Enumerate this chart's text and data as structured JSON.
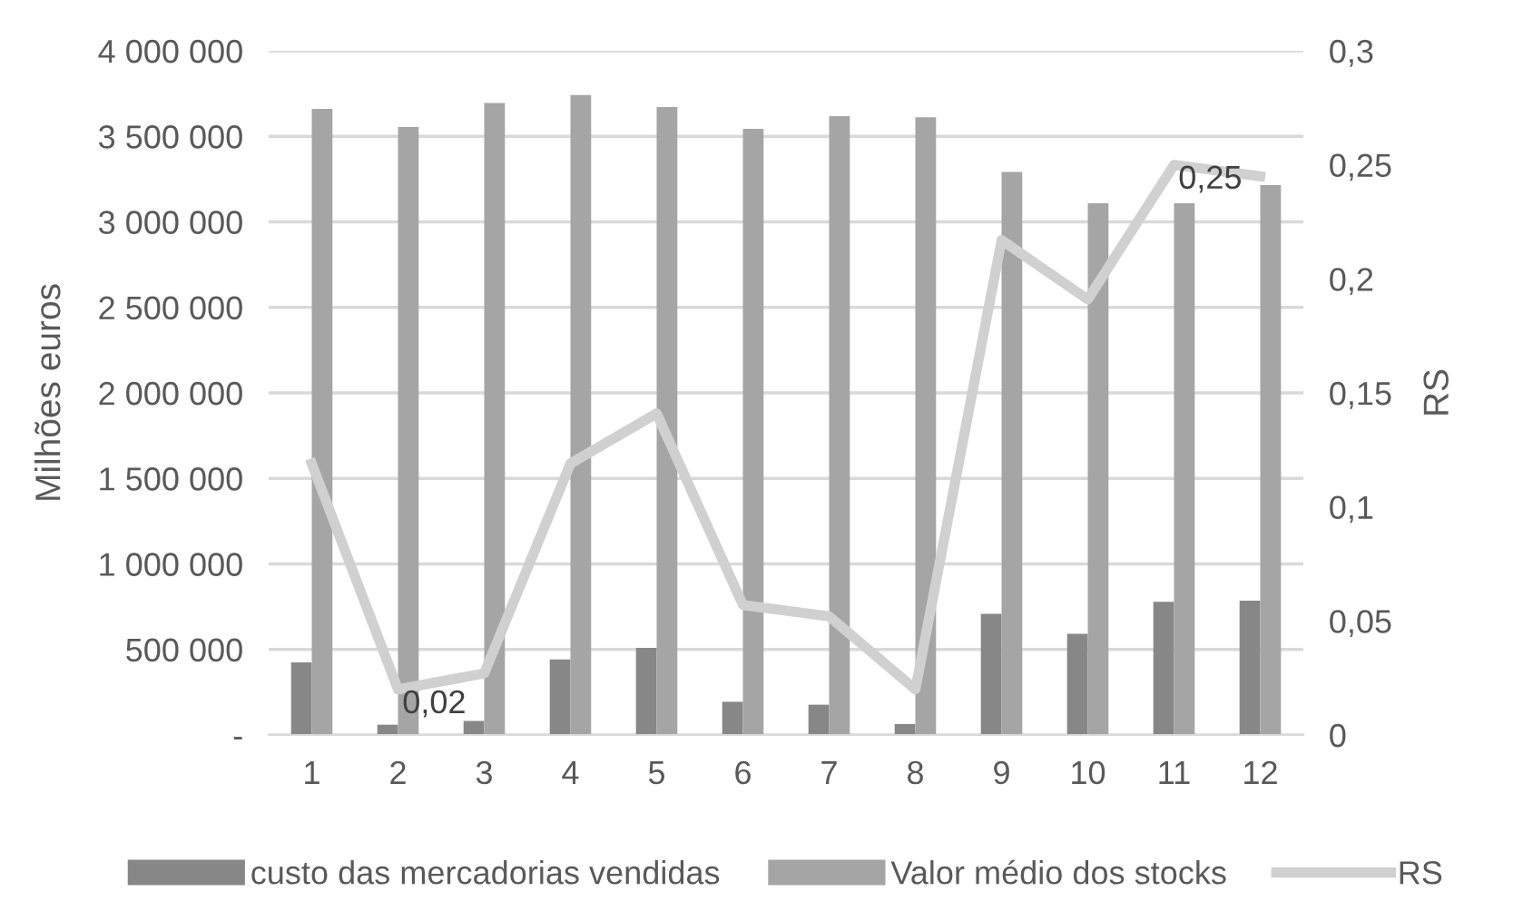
{
  "chart_data": {
    "type": "bar",
    "categories": [
      "1",
      "2",
      "3",
      "4",
      "5",
      "6",
      "7",
      "8",
      "9",
      "10",
      "11",
      "12"
    ],
    "series": [
      {
        "name": "custo das mercadorias vendidas",
        "color": "#878787",
        "values": [
          424000,
          60000,
          82000,
          442000,
          509000,
          194000,
          177000,
          64000,
          708000,
          591000,
          778000,
          785000
        ]
      },
      {
        "name": "Valor médio dos stocks",
        "color": "#a5a5a5",
        "values": [
          3660000,
          3554000,
          3695000,
          3742000,
          3671000,
          3544000,
          3618000,
          3611000,
          3292000,
          3109000,
          3109000,
          3215000
        ]
      },
      {
        "name": "RS",
        "type": "line",
        "axis": "y2",
        "color": "#d0d0d0",
        "values": [
          0.119,
          0.02,
          0.027,
          0.119,
          0.141,
          0.057,
          0.052,
          0.02,
          0.217,
          0.191,
          0.25,
          0.245
        ],
        "value_labels": [
          null,
          "0,02",
          null,
          null,
          null,
          null,
          null,
          null,
          null,
          null,
          "0,25",
          null
        ]
      }
    ],
    "ylabel": "Milhões euros",
    "y2label": "RS",
    "ylim": [
      0,
      4000000
    ],
    "yticks": [
      {
        "value": 0,
        "label": "-"
      },
      {
        "value": 500000,
        "label": "500 000"
      },
      {
        "value": 1000000,
        "label": "1 000 000"
      },
      {
        "value": 1500000,
        "label": "1 500 000"
      },
      {
        "value": 2000000,
        "label": "2 000 000"
      },
      {
        "value": 2500000,
        "label": "2 500 000"
      },
      {
        "value": 3000000,
        "label": "3 000 000"
      },
      {
        "value": 3500000,
        "label": "3 500 000"
      },
      {
        "value": 4000000,
        "label": "4 000 000"
      }
    ],
    "y2lim": [
      0,
      0.3
    ],
    "y2ticks": [
      0,
      {
        "value": 0.05,
        "label": "0,05"
      },
      {
        "value": 0.1,
        "label": "0,1"
      },
      {
        "value": 0.15,
        "label": "0,15"
      },
      {
        "value": 0.2,
        "label": "0,2"
      },
      {
        "value": 0.25,
        "label": "0,25"
      },
      {
        "value": 0.3,
        "label": "0,3"
      }
    ],
    "grid": "y",
    "legend": "bottom"
  }
}
